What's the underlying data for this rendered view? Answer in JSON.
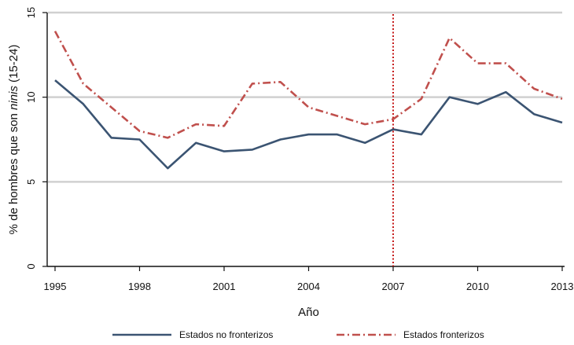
{
  "chart_data": {
    "type": "line",
    "title": "",
    "xlabel": "Año",
    "ylabel_prefix": "% de hombres que son ",
    "ylabel_italic": "ninis",
    "ylabel_suffix": " (15-24)",
    "x": [
      1995,
      1996,
      1997,
      1998,
      1999,
      2000,
      2001,
      2002,
      2003,
      2004,
      2005,
      2006,
      2007,
      2008,
      2009,
      2010,
      2011,
      2012,
      2013
    ],
    "xlim": [
      1995,
      2013
    ],
    "ylim": [
      0,
      15
    ],
    "xticks": [
      "1995",
      "1998",
      "2001",
      "2004",
      "2007",
      "2010",
      "2013"
    ],
    "yticks": [
      "0",
      "5",
      "10",
      "15"
    ],
    "grid": "horizontal",
    "reference_line": {
      "x": 2007,
      "color": "#c00000"
    },
    "legend_position": "bottom",
    "series": [
      {
        "name": "Estados no fronterizos",
        "color": "#3b5472",
        "style": "solid",
        "values": [
          11.0,
          9.6,
          7.6,
          7.5,
          5.8,
          7.3,
          6.8,
          6.9,
          7.5,
          7.8,
          7.8,
          7.3,
          8.1,
          7.8,
          10.0,
          9.6,
          10.3,
          9.0,
          8.5
        ]
      },
      {
        "name": "Estados fronterizos",
        "color": "#c0504d",
        "style": "dashdot",
        "values": [
          13.9,
          10.8,
          9.4,
          8.0,
          7.6,
          8.4,
          8.3,
          10.8,
          10.9,
          9.4,
          8.9,
          8.4,
          8.7,
          9.9,
          13.5,
          12.0,
          12.0,
          10.5,
          9.9
        ]
      }
    ]
  }
}
